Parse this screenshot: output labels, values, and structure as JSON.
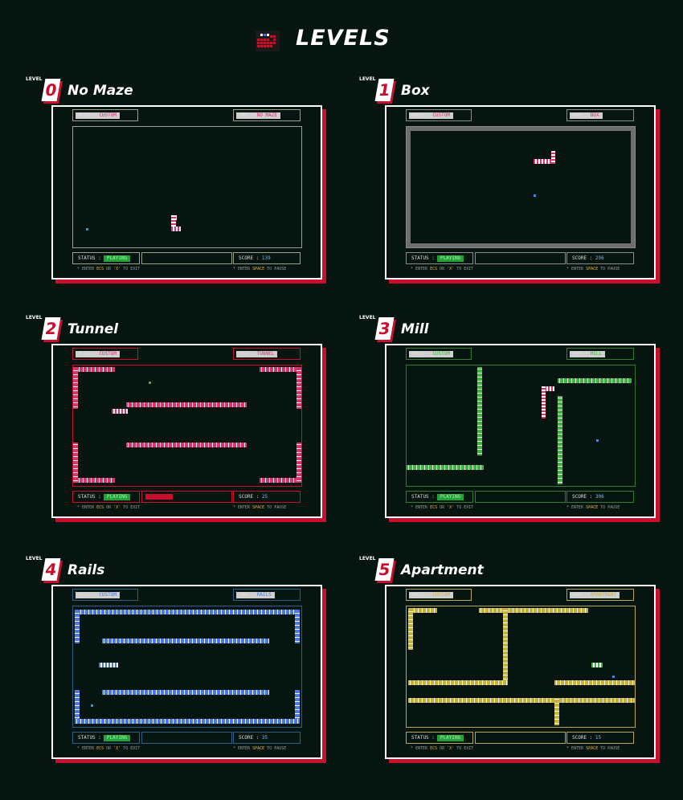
{
  "title": "LEVELS",
  "icons": {
    "logo": "pixel-block-logo-icon"
  },
  "colors": {
    "background": "#071510",
    "accent_red": "#c8102e",
    "frame": "#ffffff",
    "status_green": "#22a33a",
    "hint_yellow": "#f0b23a"
  },
  "level_word": "LEVEL",
  "levels": [
    {
      "number": "0",
      "name": "No Maze",
      "mode_label": "MODE :",
      "mode_value": "CUSTOM",
      "map_label": "MAP :",
      "map_value": "NO MAZE",
      "status_label": "STATUS :",
      "status_value": "PLAYING",
      "score_label": "SCORE :",
      "score_value": "139",
      "hint_exit_pre": "* ENTER ",
      "hint_exit_key_a": "ECS",
      "hint_exit_mid": " OR ",
      "hint_exit_key_b": "'X'",
      "hint_exit_post": " TO EXIT",
      "hint_pause_pre": "* ENTER ",
      "hint_pause_key": "SPACE",
      "hint_pause_post": " TO PAUSE",
      "theme": "#d8336a",
      "border": "#9aa08f",
      "progress": 0
    },
    {
      "number": "1",
      "name": "Box",
      "mode_label": "MODE :",
      "mode_value": "CUSTOM",
      "map_label": "MAP :",
      "map_value": "BOX",
      "status_label": "STATUS :",
      "status_value": "PLAYING",
      "score_label": "SCORE :",
      "score_value": "296",
      "hint_exit_pre": "* ENTER ",
      "hint_exit_key_a": "ECS",
      "hint_exit_mid": " OR ",
      "hint_exit_key_b": "'X'",
      "hint_exit_post": " TO EXIT",
      "hint_pause_pre": "* ENTER ",
      "hint_pause_key": "SPACE",
      "hint_pause_post": " TO PAUSE",
      "theme": "#d8336a",
      "border": "#8c8c8c",
      "progress": 0
    },
    {
      "number": "2",
      "name": "Tunnel",
      "mode_label": "MODE :",
      "mode_value": "CUSTOM",
      "map_label": "MAP :",
      "map_value": "TUNNEL",
      "status_label": "STATUS :",
      "status_value": "PLAYING",
      "score_label": "SCORE :",
      "score_value": "25",
      "hint_exit_pre": "* ENTER ",
      "hint_exit_key_a": "ECS",
      "hint_exit_mid": " OR ",
      "hint_exit_key_b": "'X'",
      "hint_exit_post": " TO EXIT",
      "hint_pause_pre": "* ENTER ",
      "hint_pause_key": "SPACE",
      "hint_pause_post": " TO PAUSE",
      "theme": "#d8336a",
      "border": "#c8102e",
      "progress": 0.33
    },
    {
      "number": "3",
      "name": "Mill",
      "mode_label": "MODE :",
      "mode_value": "CUSTOM",
      "map_label": "MAP :",
      "map_value": "MILL",
      "status_label": "STATUS :",
      "status_value": "PLAYING",
      "score_label": "SCORE :",
      "score_value": "306",
      "hint_exit_pre": "* ENTER ",
      "hint_exit_key_a": "ECS",
      "hint_exit_mid": " OR ",
      "hint_exit_key_b": "'X'",
      "hint_exit_post": " TO EXIT",
      "hint_pause_pre": "* ENTER ",
      "hint_pause_key": "SPACE",
      "hint_pause_post": " TO PAUSE",
      "theme": "#3fb33f",
      "border": "#2e7d32",
      "progress": 0
    },
    {
      "number": "4",
      "name": "Rails",
      "mode_label": "MODE :",
      "mode_value": "CUSTOM",
      "map_label": "MAP :",
      "map_value": "RAILS",
      "status_label": "STATUS :",
      "status_value": "PLAYING",
      "score_label": "SCORE :",
      "score_value": "35",
      "hint_exit_pre": "* ENTER ",
      "hint_exit_key_a": "ECS",
      "hint_exit_mid": " OR ",
      "hint_exit_key_b": "'X'",
      "hint_exit_post": " TO EXIT",
      "hint_pause_pre": "* ENTER ",
      "hint_pause_key": "SPACE",
      "hint_pause_post": " TO PAUSE",
      "theme": "#4a78e0",
      "border": "#2b5f8a",
      "progress": 0
    },
    {
      "number": "5",
      "name": "Apartment",
      "mode_label": "MODE :",
      "mode_value": "CUSTOM",
      "map_label": "MAP :",
      "map_value": "APARTMENT",
      "status_label": "STATUS :",
      "status_value": "PLAYING",
      "score_label": "SCORE :",
      "score_value": "15",
      "hint_exit_pre": "* ENTER ",
      "hint_exit_key_a": "ECS",
      "hint_exit_mid": " OR ",
      "hint_exit_key_b": "'X'",
      "hint_exit_post": " TO EXIT",
      "hint_pause_pre": "* ENTER ",
      "hint_pause_key": "SPACE",
      "hint_pause_post": " TO PAUSE",
      "theme": "#c9b23a",
      "border": "#b8a65a",
      "progress": 0
    }
  ]
}
